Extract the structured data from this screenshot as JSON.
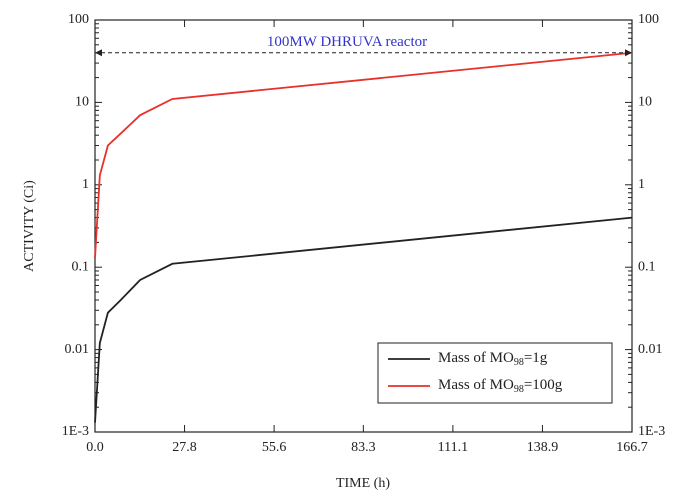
{
  "chart_data": {
    "type": "line",
    "xlabel": "TIME (h)",
    "ylabel": "ACTIVITY (Ci)",
    "log_y": true,
    "x": [
      0,
      1.5,
      4,
      8,
      14,
      24,
      166.7
    ],
    "series": [
      {
        "name": "Mass of MO98=1g",
        "color": "#222222",
        "values": [
          0.0013,
          0.012,
          0.028,
          0.04,
          0.07,
          0.11,
          0.4
        ]
      },
      {
        "name": "Mass of MO98=100g",
        "color": "#e8312a",
        "values": [
          0.13,
          1.3,
          3,
          4.2,
          7,
          11,
          40
        ]
      }
    ],
    "reference_line": {
      "value": 40,
      "label": "100MW DHRUVA reactor",
      "color": "#3333cc"
    },
    "xlim": [
      0,
      166.7
    ],
    "xticks": [
      {
        "value": 0,
        "label": "0.0"
      },
      27.8,
      55.6,
      83.3,
      111.1,
      138.9,
      166.7
    ],
    "ylim": [
      0.001,
      100
    ],
    "yticks": [
      {
        "value": 0.001,
        "label": "1E-3"
      },
      0.01,
      0.1,
      1,
      10,
      100
    ],
    "legend": "lower right"
  }
}
